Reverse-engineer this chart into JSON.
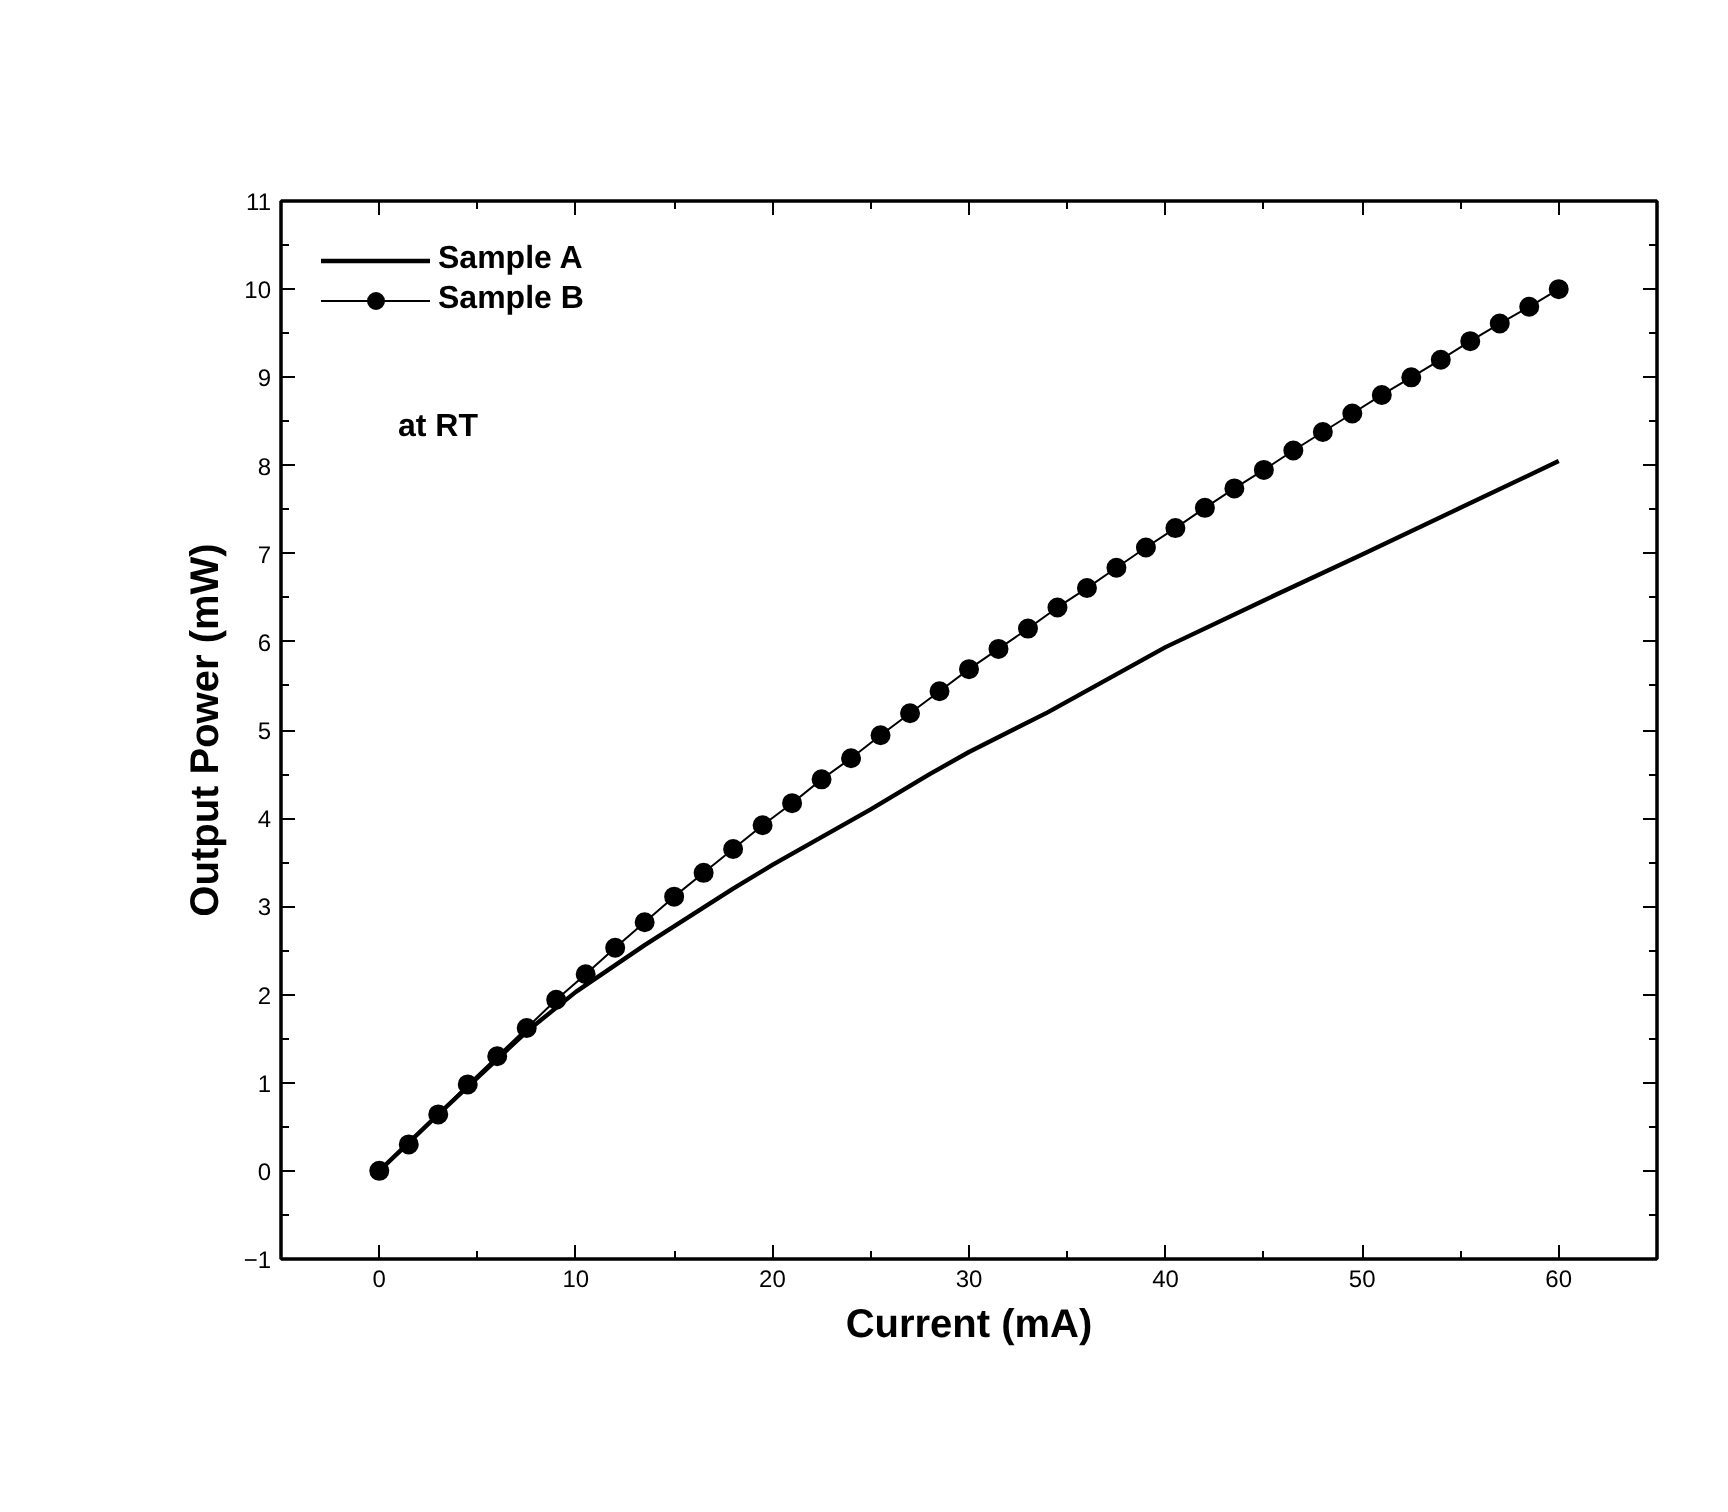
{
  "chart_data": {
    "type": "line",
    "xlabel": "Current (mA)",
    "ylabel": "Output Power (mW)",
    "xlim": [
      -5,
      65
    ],
    "xticks": [
      0,
      10,
      20,
      30,
      40,
      50,
      60
    ],
    "ylim": [
      -1,
      11
    ],
    "yticks": [
      -1,
      0,
      1,
      2,
      3,
      4,
      5,
      6,
      7,
      8,
      9,
      10,
      11
    ],
    "grid": false,
    "legend": "top left",
    "annotations": [
      "at RT"
    ],
    "series": [
      {
        "name": "Sample A",
        "color": "#000000",
        "marker": "none",
        "line_style": "solid",
        "x": [
          0,
          3,
          7.5,
          10,
          13.5,
          18,
          20,
          25,
          28,
          30,
          34,
          40,
          45,
          50,
          55,
          60
        ],
        "values": [
          0,
          0.64,
          1.58,
          2.03,
          2.56,
          3.2,
          3.47,
          4.1,
          4.5,
          4.75,
          5.2,
          5.94,
          6.47,
          6.99,
          7.52,
          8.05
        ]
      },
      {
        "name": "Sample B",
        "color": "#000000",
        "marker": "circle",
        "line_style": "solid",
        "x": [
          0,
          1.5,
          3,
          4.5,
          6,
          7.5,
          9,
          10.5,
          12,
          13.5,
          15,
          16.5,
          18,
          19.5,
          21,
          22.5,
          24,
          25.5,
          27,
          28.5,
          30,
          31.5,
          33,
          34.5,
          36,
          37.5,
          39,
          40.5,
          42,
          43.5,
          45,
          46.5,
          48,
          49.5,
          51,
          52.5,
          54,
          55.5,
          57,
          58.5,
          60
        ],
        "values": [
          0,
          0.3,
          0.64,
          0.98,
          1.3,
          1.62,
          1.94,
          2.23,
          2.53,
          2.82,
          3.11,
          3.38,
          3.65,
          3.92,
          4.17,
          4.44,
          4.68,
          4.94,
          5.19,
          5.44,
          5.69,
          5.92,
          6.15,
          6.39,
          6.61,
          6.84,
          7.07,
          7.29,
          7.52,
          7.74,
          7.95,
          8.17,
          8.38,
          8.59,
          8.8,
          9.0,
          9.2,
          9.41,
          9.61,
          9.8,
          10.0
        ]
      }
    ]
  }
}
